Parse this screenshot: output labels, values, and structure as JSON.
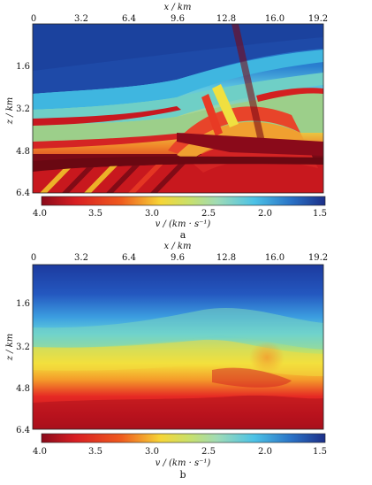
{
  "figure": {
    "panel_a": {
      "label": "a",
      "x_axis": {
        "title": "x / km",
        "ticks": [
          "0",
          "3.2",
          "6.4",
          "9.6",
          "12.8",
          "16.0",
          "19.2"
        ]
      },
      "z_axis": {
        "title": "z / km",
        "ticks": [
          "1.6",
          "3.2",
          "4.8",
          "6.4"
        ]
      },
      "colorbar": {
        "title": "v / (km · s⁻¹)",
        "ticks": [
          "4.0",
          "3.5",
          "3.0",
          "2.5",
          "2.0",
          "1.5"
        ]
      }
    },
    "panel_b": {
      "label": "b",
      "x_axis": {
        "title": "x / km",
        "ticks": [
          "0",
          "3.2",
          "6.4",
          "9.6",
          "12.8",
          "16.0",
          "19.2"
        ]
      },
      "z_axis": {
        "title": "z / km",
        "ticks": [
          "1.6",
          "3.2",
          "4.8",
          "6.4"
        ]
      },
      "colorbar": {
        "title": "v / (km · s⁻¹)",
        "ticks": [
          "4.0",
          "3.5",
          "3.0",
          "2.5",
          "2.0",
          "1.5"
        ]
      }
    },
    "colors": {
      "high_velocity": "#b01020",
      "mid_high": "#e8322a",
      "mid": "#f0e040",
      "mid_low": "#49c7e0",
      "low_velocity": "#1f3f9a"
    }
  }
}
